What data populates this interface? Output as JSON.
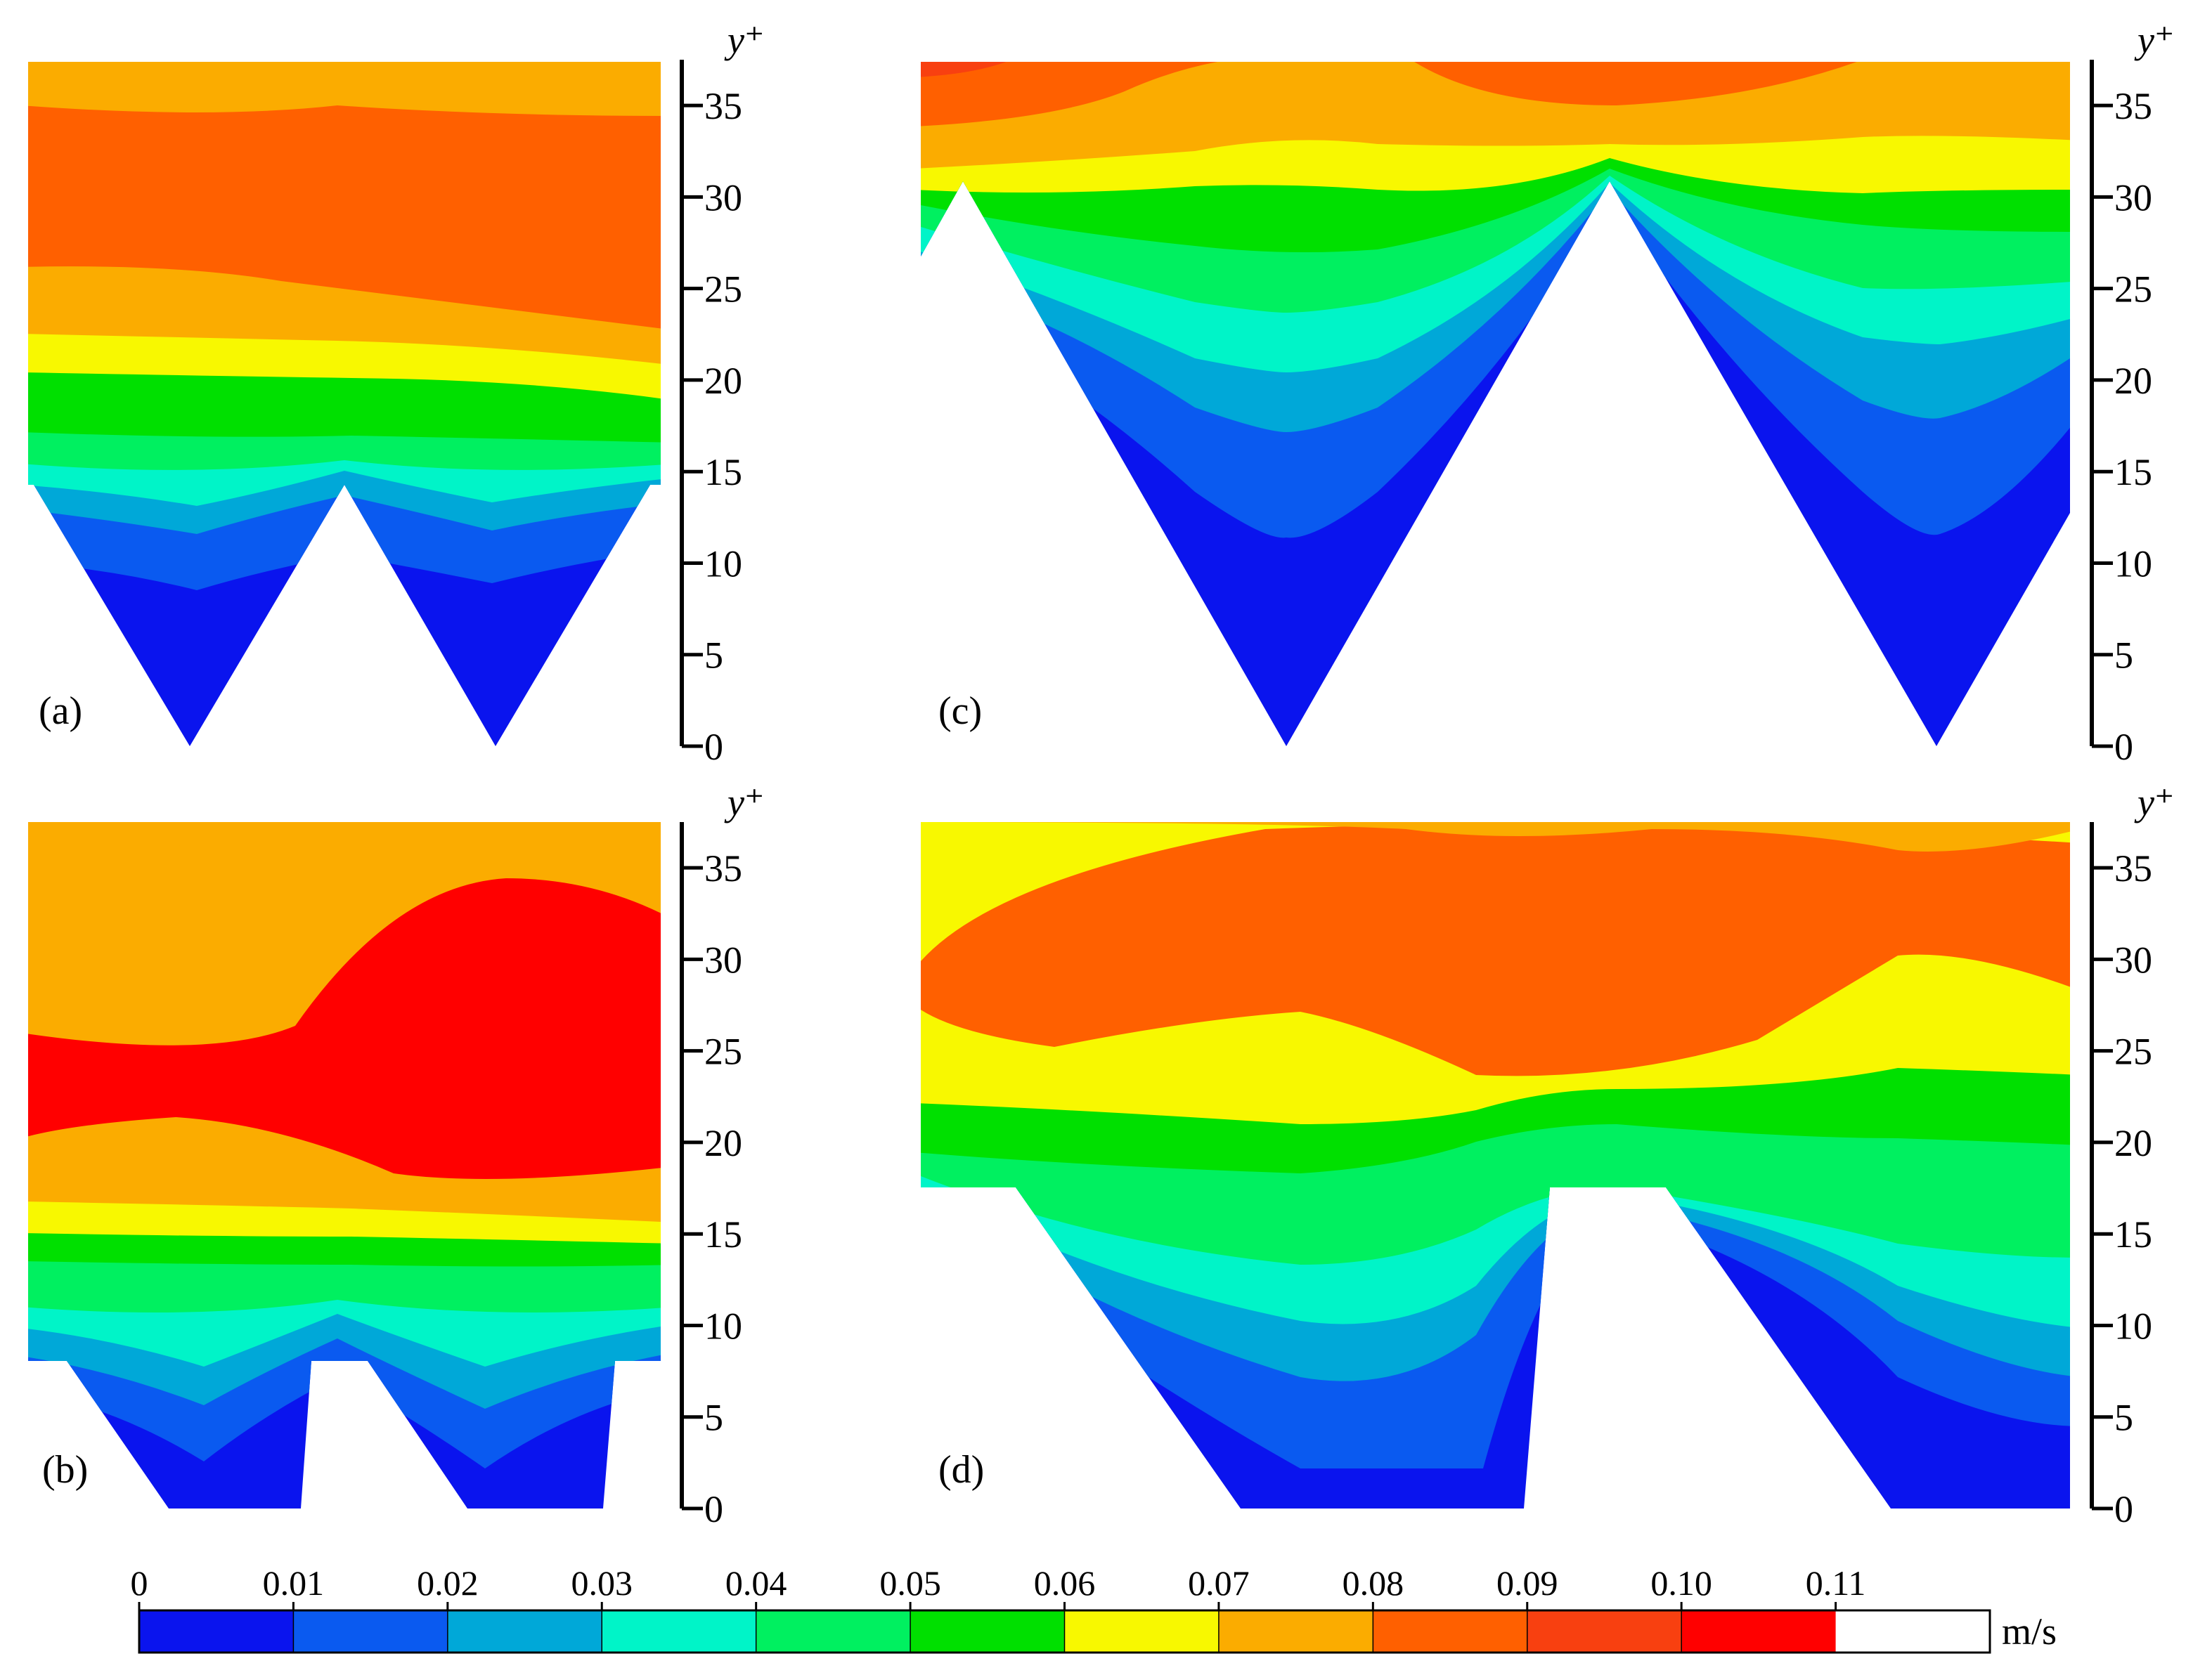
{
  "chart_data": {
    "type": "heatmap",
    "title": "",
    "colorbar": {
      "unit": "m/s",
      "ticks": [
        "0",
        "0.01",
        "0.02",
        "0.03",
        "0.04",
        "0.05",
        "0.06",
        "0.07",
        "0.08",
        "0.09",
        "0.10",
        "0.11"
      ],
      "range": [
        0,
        0.12
      ],
      "levels": [
        {
          "min": 0.0,
          "max": 0.01,
          "color": "#0a14ee"
        },
        {
          "min": 0.01,
          "max": 0.02,
          "color": "#0a5af0"
        },
        {
          "min": 0.02,
          "max": 0.03,
          "color": "#00a8d8"
        },
        {
          "min": 0.03,
          "max": 0.04,
          "color": "#00f4c8"
        },
        {
          "min": 0.04,
          "max": 0.05,
          "color": "#00f060"
        },
        {
          "min": 0.05,
          "max": 0.06,
          "color": "#00e000"
        },
        {
          "min": 0.06,
          "max": 0.07,
          "color": "#f8f800"
        },
        {
          "min": 0.07,
          "max": 0.08,
          "color": "#fbac00"
        },
        {
          "min": 0.08,
          "max": 0.09,
          "color": "#ff6000"
        },
        {
          "min": 0.09,
          "max": 0.1,
          "color": "#f84010"
        },
        {
          "min": 0.1,
          "max": 0.11,
          "color": "#ff0000"
        }
      ]
    },
    "panels": [
      {
        "id": "a",
        "label": "(a)",
        "ylabel": "y⁺",
        "ylim": [
          0,
          37.5
        ],
        "yticks": [
          "0",
          "5",
          "10",
          "15",
          "20",
          "25",
          "30",
          "35"
        ],
        "geometry": "triangular",
        "riblet_height": 15,
        "velocity_bands_yplus": [
          15.5,
          16.5,
          18.5,
          20.5,
          22.5,
          25,
          34.5,
          37.5
        ]
      },
      {
        "id": "b",
        "label": "(b)",
        "ylabel": "y⁺",
        "ylim": [
          0,
          37.5
        ],
        "yticks": [
          "0",
          "5",
          "10",
          "15",
          "20",
          "25",
          "30",
          "35"
        ],
        "geometry": "trapezoidal",
        "riblet_height": 8,
        "velocity_bands_yplus": [
          9,
          10,
          11.5,
          13.5,
          15.5,
          17.5,
          30,
          37.5
        ]
      },
      {
        "id": "c",
        "label": "(c)",
        "ylabel": "y⁺",
        "ylim": [
          0,
          37.5
        ],
        "yticks": [
          "0",
          "5",
          "10",
          "15",
          "20",
          "25",
          "30",
          "35"
        ],
        "geometry": "triangular",
        "riblet_height": 31,
        "velocity_bands_yplus": [
          32,
          33,
          34,
          35,
          36,
          37,
          37.5
        ]
      },
      {
        "id": "d",
        "label": "(d)",
        "ylabel": "y⁺",
        "ylim": [
          0,
          37.5
        ],
        "yticks": [
          "0",
          "5",
          "10",
          "15",
          "20",
          "25",
          "30",
          "35"
        ],
        "geometry": "trapezoidal",
        "riblet_height": 18,
        "velocity_bands_yplus": [
          19,
          20,
          21.5,
          23.5,
          25.5,
          27,
          37.5
        ]
      }
    ]
  }
}
